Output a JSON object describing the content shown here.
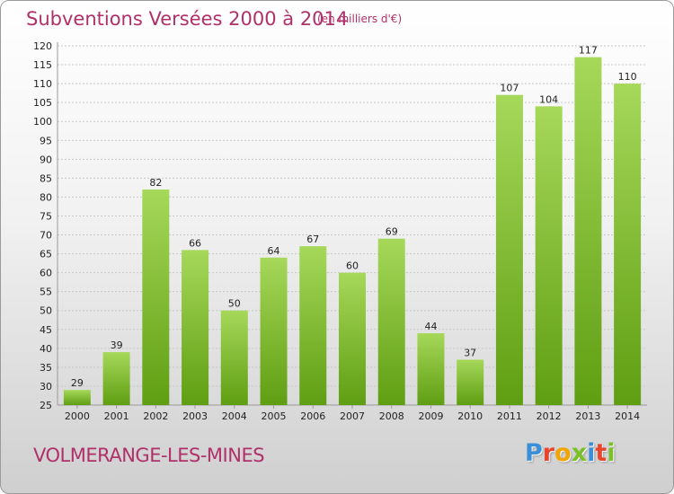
{
  "chart": {
    "title": "Subventions Versées 2000 à 2014",
    "unit_note": "(en milliers d'€)",
    "commune": "VOLMERANGE-LES-MINES",
    "logo": {
      "text": "Proxiti",
      "letter_colors": [
        "#3a8fd8",
        "#e8452c",
        "#f2a400",
        "#7bbf2a",
        "#3a8fd8",
        "#e8452c",
        "#7bbf2a"
      ]
    }
  },
  "colors": {
    "bar_light": "#a6d85a",
    "bar_dark": "#5f9e12",
    "title": "#b0306a",
    "grid": "#c8c8c8",
    "axis_text": "#222222"
  },
  "chart_data": {
    "type": "bar",
    "categories": [
      "2000",
      "2001",
      "2002",
      "2003",
      "2004",
      "2005",
      "2006",
      "2007",
      "2008",
      "2009",
      "2010",
      "2011",
      "2012",
      "2013",
      "2014"
    ],
    "values": [
      29,
      39,
      82,
      66,
      50,
      64,
      67,
      60,
      69,
      44,
      37,
      107,
      104,
      117,
      110
    ],
    "data_labels": [
      "29",
      "39",
      "82",
      "66",
      "50",
      "64",
      "67",
      "60",
      "69",
      "44",
      "37",
      "107",
      "104",
      "117",
      "110"
    ],
    "yticks": [
      "25",
      "30",
      "35",
      "40",
      "45",
      "50",
      "55",
      "60",
      "65",
      "70",
      "75",
      "80",
      "85",
      "90",
      "95",
      "100",
      "105",
      "110",
      "115",
      "120"
    ],
    "ylim": [
      25,
      120
    ],
    "title": "Subventions Versées 2000 à 2014",
    "xlabel": "",
    "ylabel": "",
    "grid": true,
    "legend": "none"
  }
}
